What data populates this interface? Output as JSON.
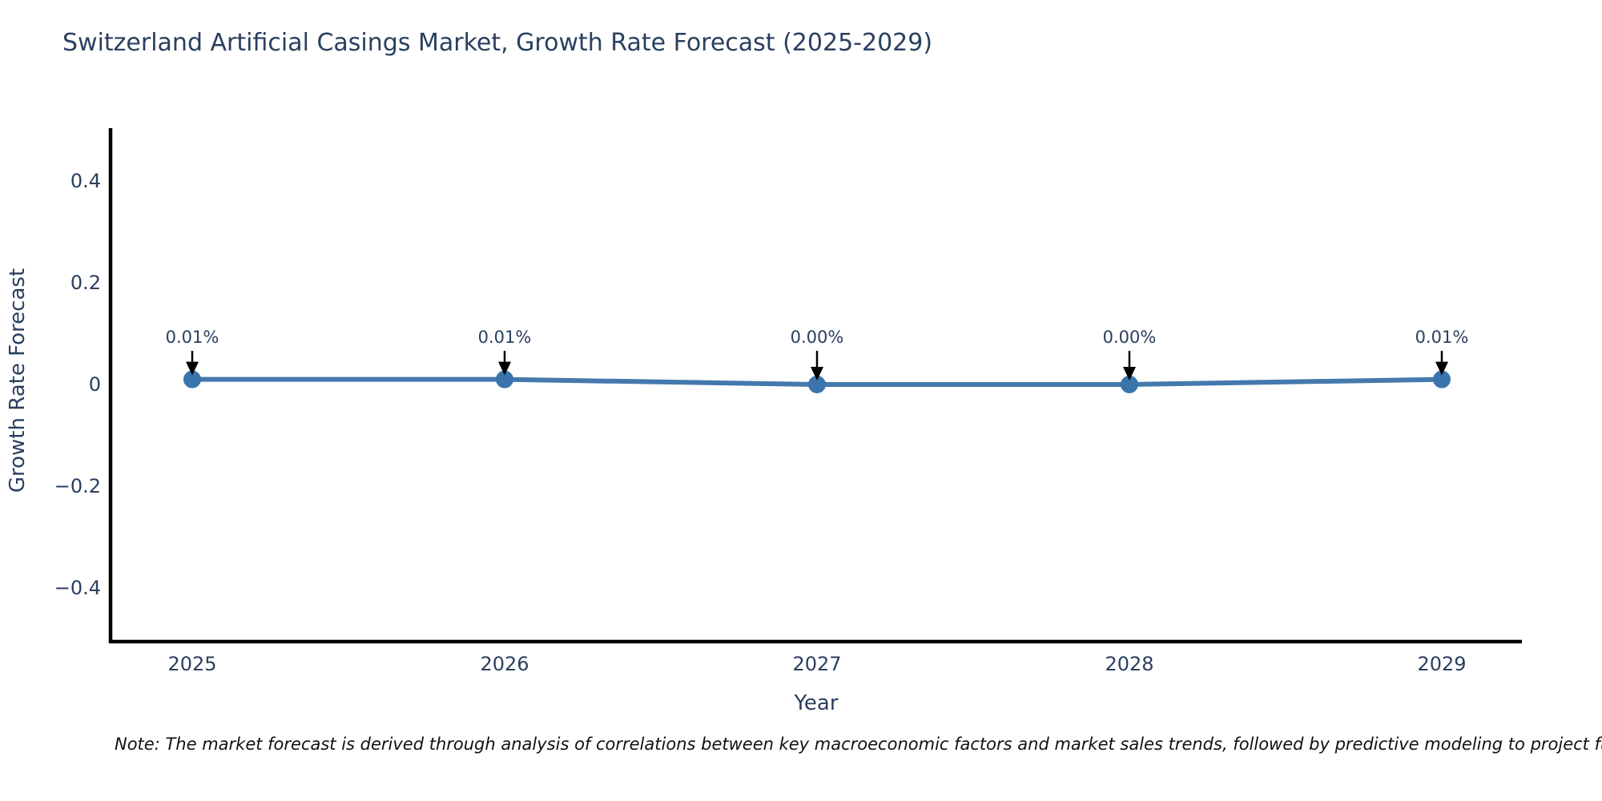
{
  "page": {
    "background": "#ffffff"
  },
  "note": "Note: The market forecast is derived through analysis of correlations between key macroeconomic factors and market sales trends, followed by predictive modeling to project future sales.",
  "chart_data": {
    "type": "line",
    "title": "Switzerland Artificial Casings Market, Growth Rate Forecast (2025-2029)",
    "xlabel": "Year",
    "ylabel": "Growth Rate Forecast",
    "x": [
      "2025",
      "2026",
      "2027",
      "2028",
      "2029"
    ],
    "values": [
      0.01,
      0.01,
      0.0,
      0.0,
      0.01
    ],
    "point_labels": [
      "0.01%",
      "0.01%",
      "0.00%",
      "0.00%",
      "0.01%"
    ],
    "ylim": [
      -0.5,
      0.5
    ],
    "ytick_values": [
      0.4,
      0.2,
      0,
      -0.2,
      -0.4
    ],
    "ytick_labels": [
      "0.4",
      "0.2",
      "0",
      "−0.2",
      "−0.4"
    ],
    "grid": false,
    "legend": "none",
    "annotation_style": "down-arrow",
    "colors": {
      "line": "#4479ad",
      "marker": "#3a74ad",
      "axis": "#000000",
      "text": "#2a3f5f",
      "annotation_text": "#2a3f5f",
      "annotation_arrow": "#000000",
      "note_text": "#111111",
      "background": "#ffffff"
    }
  }
}
